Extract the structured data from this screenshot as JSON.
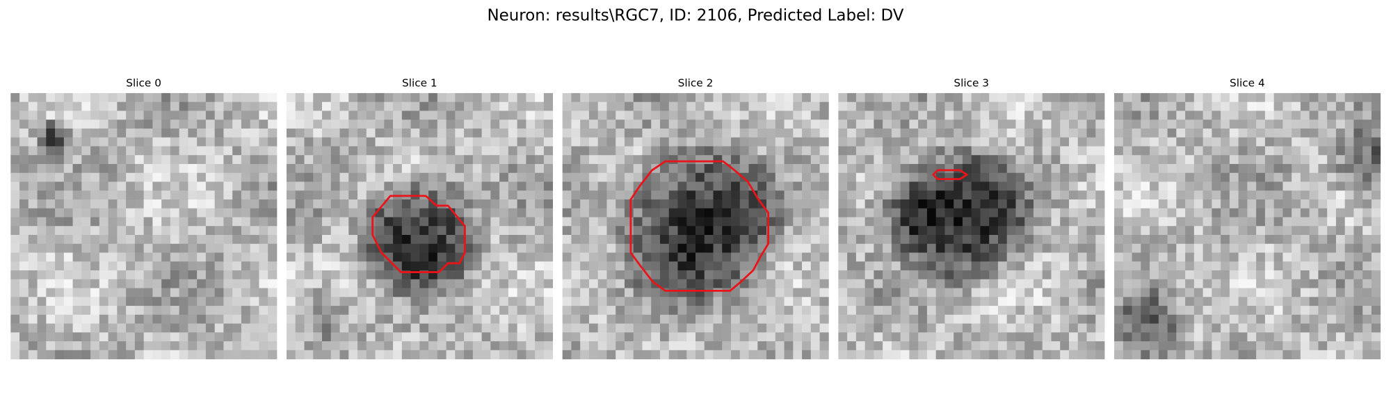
{
  "title": "Neuron: results\\RGC7, ID: 2106, Predicted Label: DV",
  "panels": [
    {
      "title": "Slice 0"
    },
    {
      "title": "Slice 1"
    },
    {
      "title": "Slice 2"
    },
    {
      "title": "Slice 3"
    },
    {
      "title": "Slice 4"
    }
  ]
}
